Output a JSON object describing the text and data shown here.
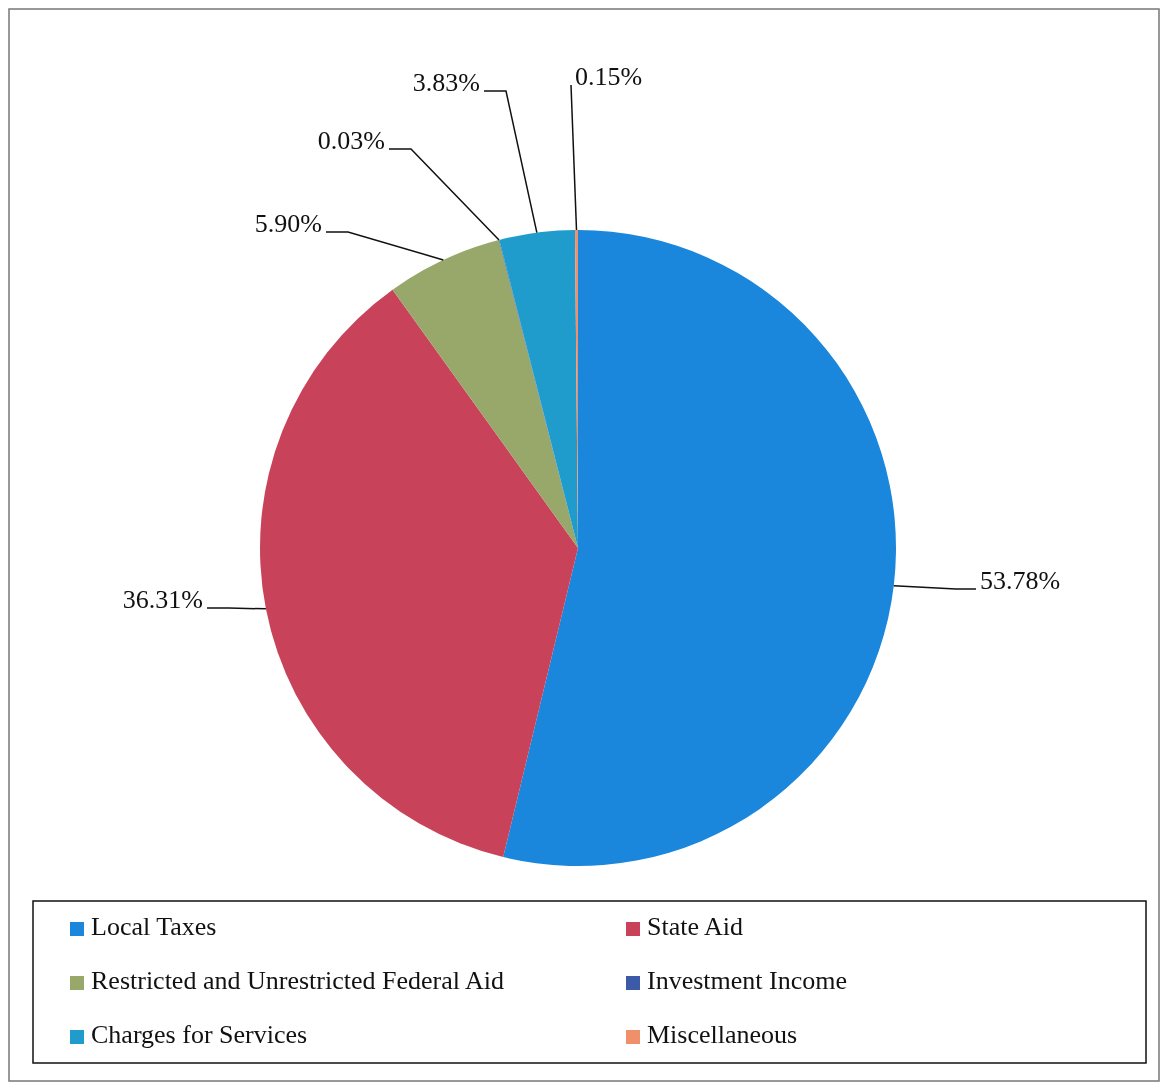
{
  "chart_data": {
    "type": "pie",
    "categories": [
      "Local Taxes",
      "State Aid",
      "Restricted and Unrestricted Federal Aid",
      "Investment Income",
      "Charges for Services",
      "Miscellaneous"
    ],
    "values": [
      53.78,
      36.31,
      5.9,
      0.03,
      3.83,
      0.15
    ],
    "value_labels": [
      "53.78%",
      "36.31%",
      "5.90%",
      "0.03%",
      "3.83%",
      "0.15%"
    ],
    "colors": [
      "#1a86dc",
      "#c8435a",
      "#97a86a",
      "#3d5aa8",
      "#1f9ccc",
      "#f0906a"
    ],
    "legend": "bottom"
  }
}
